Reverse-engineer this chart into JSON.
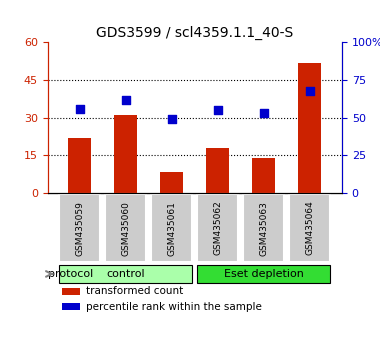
{
  "title": "GDS3599 / scl4359.1.1_40-S",
  "categories": [
    "GSM435059",
    "GSM435060",
    "GSM435061",
    "GSM435062",
    "GSM435063",
    "GSM435064"
  ],
  "bar_values": [
    22,
    31,
    8.5,
    18,
    14,
    52
  ],
  "scatter_values": [
    56,
    62,
    49,
    55,
    53,
    68
  ],
  "bar_color": "#cc2200",
  "scatter_color": "#0000cc",
  "left_ylim": [
    0,
    60
  ],
  "right_ylim": [
    0,
    100
  ],
  "left_yticks": [
    0,
    15,
    30,
    45,
    60
  ],
  "right_yticks": [
    0,
    25,
    50,
    75,
    100
  ],
  "right_yticklabels": [
    "0",
    "25",
    "50",
    "75",
    "100%"
  ],
  "left_ycolor": "#cc2200",
  "right_ycolor": "#0000cc",
  "group_labels": [
    "control",
    "Eset depletion"
  ],
  "group_ranges": [
    [
      0,
      3
    ],
    [
      3,
      6
    ]
  ],
  "group_colors": [
    "#aaffaa",
    "#33dd33"
  ],
  "protocol_label": "protocol",
  "legend_items": [
    {
      "label": "transformed count",
      "color": "#cc2200"
    },
    {
      "label": "percentile rank within the sample",
      "color": "#0000cc"
    }
  ],
  "bar_width": 0.5,
  "grid_yticks": [
    15,
    30,
    45
  ],
  "background_color": "#ffffff",
  "plot_bg_color": "#ffffff",
  "xticklabel_bg": "#cccccc"
}
